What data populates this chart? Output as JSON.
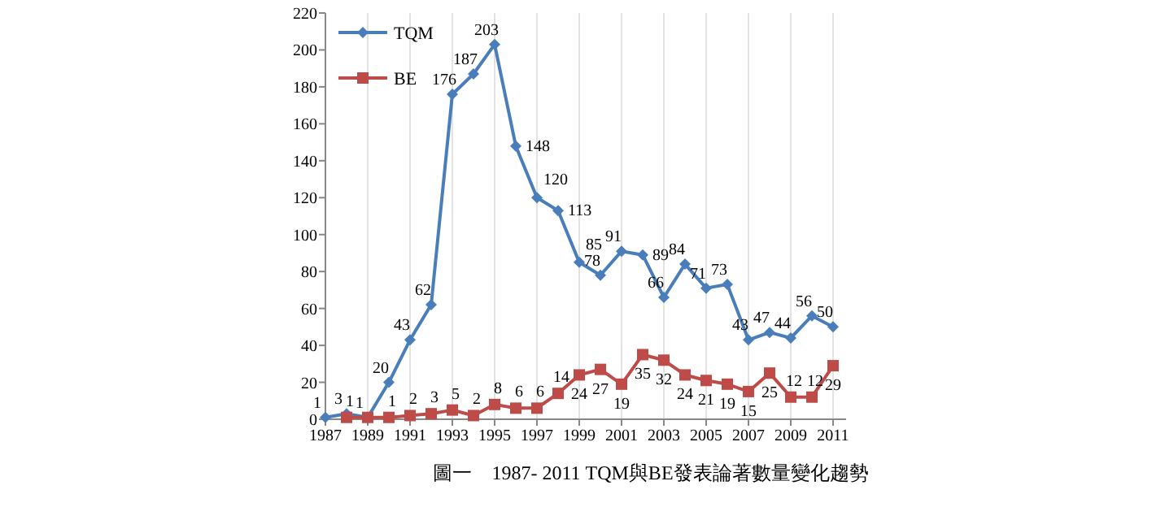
{
  "chart_data": {
    "type": "line",
    "x": [
      1987,
      1988,
      1989,
      1990,
      1991,
      1992,
      1993,
      1994,
      1995,
      1996,
      1997,
      1998,
      1999,
      2000,
      2001,
      2002,
      2003,
      2004,
      2005,
      2006,
      2007,
      2008,
      2009,
      2010,
      2011
    ],
    "series": [
      {
        "name": "TQM",
        "color": "#4a7ebb",
        "marker": "diamond",
        "values": [
          1,
          3,
          1,
          20,
          43,
          62,
          176,
          187,
          203,
          148,
          120,
          113,
          85,
          78,
          91,
          89,
          66,
          84,
          71,
          73,
          43,
          47,
          44,
          56,
          50
        ]
      },
      {
        "name": "BE",
        "color": "#be4b48",
        "marker": "square",
        "values": [
          null,
          1,
          1,
          1,
          2,
          3,
          5,
          2,
          8,
          6,
          6,
          14,
          24,
          27,
          19,
          35,
          32,
          24,
          21,
          19,
          15,
          25,
          12,
          12,
          29
        ],
        "value_labels": [
          null,
          "1",
          null,
          "1",
          "2",
          "3",
          "5",
          "2",
          "8",
          "6",
          "6",
          "14",
          "24",
          "27",
          "19",
          "35",
          "32",
          "24",
          "21",
          "19",
          "15",
          "25",
          "12",
          "12",
          "29"
        ]
      }
    ],
    "xlim": [
      1987,
      2011
    ],
    "xticks": [
      1987,
      1989,
      1991,
      1993,
      1995,
      1997,
      1999,
      2001,
      2003,
      2005,
      2007,
      2009,
      2011
    ],
    "ylim": [
      0,
      220
    ],
    "yticks": [
      0,
      20,
      40,
      60,
      80,
      100,
      120,
      140,
      160,
      180,
      200,
      220
    ],
    "grid": "x",
    "legend": "top left",
    "data_labels": true,
    "annotations": [
      "圖一　1987- 2011 TQM與BE發表論著數量變化趨勢"
    ]
  }
}
